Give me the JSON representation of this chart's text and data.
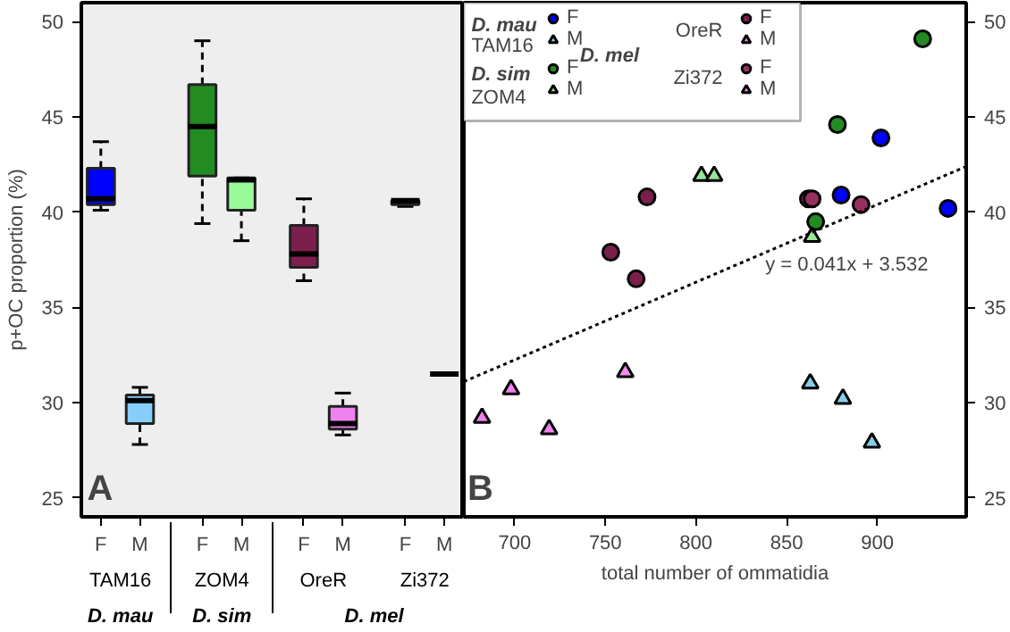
{
  "chart_data": [
    {
      "type": "box",
      "ylabel": "p+OC proportion (%)",
      "categories": [
        "F",
        "M",
        "F",
        "M",
        "F",
        "M",
        "F",
        "M"
      ],
      "colors": [
        "#0000ff",
        "#87cefa",
        "#228b22",
        "#98fb98",
        "#7d1f4c",
        "#ee82ee",
        "#000000",
        "#000000"
      ],
      "boxes": [
        {
          "low": 40.1,
          "q1": 40.4,
          "median": 40.7,
          "q3": 42.3,
          "high": 43.7
        },
        {
          "low": 27.8,
          "q1": 28.9,
          "median": 30.1,
          "q3": 30.4,
          "high": 30.8
        },
        {
          "low": 39.4,
          "q1": 41.9,
          "median": 44.5,
          "q3": 46.7,
          "high": 49.0
        },
        {
          "low": 38.5,
          "q1": 40.1,
          "median": 41.7,
          "q3": 41.8,
          "high": 41.8
        },
        {
          "low": 36.4,
          "q1": 37.1,
          "median": 37.8,
          "q3": 39.3,
          "high": 40.7
        },
        {
          "low": 28.3,
          "q1": 28.6,
          "median": 28.9,
          "q3": 29.8,
          "high": 30.5
        },
        {
          "low": 40.3,
          "q1": 40.4,
          "median": 40.6,
          "q3": 40.6,
          "high": 40.6
        },
        {
          "low": 31.5,
          "q1": 31.5,
          "median": 31.5,
          "q3": 31.5,
          "high": 31.5
        }
      ],
      "ylim": [
        24,
        51
      ],
      "yticks": [
        25,
        30,
        35,
        40,
        45,
        50
      ],
      "grid": false,
      "annotations": [
        "A",
        "TAM16",
        "ZOM4",
        "OreR",
        "Zi372",
        "D. mau",
        "D. sim",
        "D. mel"
      ]
    },
    {
      "type": "scatter",
      "xlabel": "total number of ommatidia",
      "xlim": [
        672,
        949
      ],
      "xticks": [
        700,
        750,
        800,
        850,
        900
      ],
      "ylim": [
        24,
        51
      ],
      "yticks": [
        25,
        30,
        35,
        40,
        45,
        50
      ],
      "grid": false,
      "legend": "top left",
      "series": [
        {
          "name": "F",
          "color": "#0000ff",
          "marker": "circle",
          "x": [
            902,
            880,
            939
          ],
          "values": [
            43.9,
            40.9,
            40.2
          ]
        },
        {
          "name": "M",
          "color": "#87ceeb",
          "marker": "triangle",
          "x": [
            863,
            881,
            897
          ],
          "values": [
            31.0,
            30.2,
            27.9
          ]
        },
        {
          "name": "F",
          "color": "#228b22",
          "marker": "circle",
          "x": [
            925,
            878,
            866
          ],
          "values": [
            49.1,
            44.6,
            39.5
          ]
        },
        {
          "name": "M",
          "color": "#98e698",
          "marker": "triangle",
          "x": [
            803,
            810,
            864
          ],
          "values": [
            41.9,
            41.9,
            38.7
          ]
        },
        {
          "name": "F",
          "color": "#7b1f4b",
          "marker": "circle",
          "x": [
            773,
            753,
            767
          ],
          "values": [
            40.8,
            37.9,
            36.5
          ]
        },
        {
          "name": "M",
          "color": "#ee82ee",
          "marker": "triangle",
          "x": [
            682,
            698,
            719
          ],
          "values": [
            29.2,
            30.7,
            28.6
          ]
        },
        {
          "name": "F",
          "color": "#96305f",
          "marker": "circle",
          "x": [
            862,
            864,
            891
          ],
          "values": [
            40.7,
            40.7,
            40.4
          ]
        },
        {
          "name": "M",
          "color": "#f48ce8",
          "marker": "triangle",
          "x": [
            761
          ],
          "values": [
            31.6
          ]
        },
        {
          "type": "line",
          "color": "#000000",
          "line_style": "dotted",
          "marker": "none",
          "x": [
            672,
            949
          ],
          "values": [
            31.1,
            42.4
          ]
        }
      ],
      "annotations": [
        "B",
        "D. mau",
        "TAM16",
        "D. sim",
        "ZOM4",
        "D. mel",
        "OreR",
        "Zi372",
        "y = 0.041x + 3.532"
      ]
    }
  ]
}
